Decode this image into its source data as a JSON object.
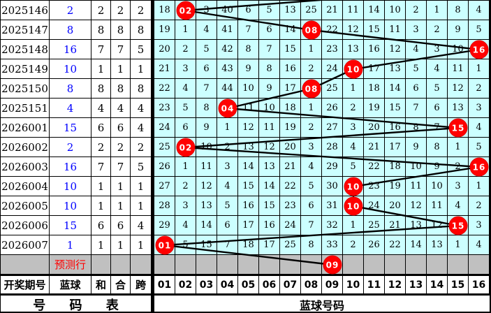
{
  "labels": {
    "left_header": [
      "开奖期号",
      "蓝球",
      "和",
      "合",
      "跨"
    ],
    "left_footer": "号 码 表",
    "prediction_row": "预测行",
    "grid_footer": "蓝球号码"
  },
  "colors": {
    "grid_cell_bg": "#ccffff",
    "prediction_row_bg": "#c0c0c0",
    "hit_circle": "#ff0000",
    "blue_value_text": "#0000ff",
    "prediction_text": "#ff0000",
    "trend_line": "#000000"
  },
  "chart_data": {
    "type": "table",
    "title": "蓝球号码走势表",
    "columns": [
      "01",
      "02",
      "03",
      "04",
      "05",
      "06",
      "07",
      "08",
      "09",
      "10",
      "11",
      "12",
      "13",
      "14",
      "15",
      "16"
    ],
    "periods": [
      "2025146",
      "2025147",
      "2025148",
      "2025149",
      "2025150",
      "2025151",
      "2026001",
      "2026002",
      "2026003",
      "2026004",
      "2026005",
      "2026006",
      "2026007"
    ],
    "blue_ball": [
      2,
      8,
      16,
      10,
      8,
      4,
      15,
      2,
      16,
      10,
      10,
      15,
      1
    ],
    "ball_labels": [
      "02",
      "08",
      "16",
      "10",
      "08",
      "04",
      "15",
      "02",
      "16",
      "10",
      "10",
      "15",
      "01"
    ],
    "sum_column": [
      "2",
      "8",
      "7",
      "1",
      "8",
      "4",
      "6",
      "2",
      "7",
      "1",
      "1",
      "6",
      "1"
    ],
    "combo_column": [
      "2",
      "8",
      "7",
      "1",
      "8",
      "4",
      "6",
      "2",
      "7",
      "1",
      "1",
      "6",
      "1"
    ],
    "span_column": [
      "2",
      "8",
      "5",
      "1",
      "8",
      "4",
      "4",
      "2",
      "5",
      "1",
      "1",
      "4",
      "1"
    ],
    "miss_matrix": [
      [
        "18",
        "",
        "3",
        "40",
        "6",
        "5",
        "13",
        "25",
        "21",
        "11",
        "14",
        "10",
        "2",
        "1",
        "8",
        "4"
      ],
      [
        "19",
        "1",
        "4",
        "41",
        "7",
        "6",
        "14",
        "",
        "22",
        "12",
        "15",
        "11",
        "3",
        "2",
        "9",
        "5"
      ],
      [
        "20",
        "2",
        "5",
        "42",
        "8",
        "7",
        "15",
        "1",
        "23",
        "13",
        "16",
        "12",
        "4",
        "3",
        "10",
        ""
      ],
      [
        "21",
        "3",
        "6",
        "43",
        "9",
        "8",
        "16",
        "2",
        "24",
        "",
        "17",
        "13",
        "5",
        "4",
        "11",
        "1"
      ],
      [
        "22",
        "4",
        "7",
        "44",
        "10",
        "9",
        "17",
        "",
        "25",
        "1",
        "18",
        "14",
        "6",
        "5",
        "12",
        "2"
      ],
      [
        "23",
        "5",
        "8",
        "",
        "11",
        "10",
        "18",
        "1",
        "26",
        "2",
        "19",
        "15",
        "7",
        "6",
        "13",
        "3"
      ],
      [
        "24",
        "6",
        "9",
        "1",
        "12",
        "11",
        "19",
        "2",
        "27",
        "3",
        "20",
        "16",
        "8",
        "7",
        "",
        "4"
      ],
      [
        "25",
        "",
        "10",
        "2",
        "13",
        "12",
        "20",
        "3",
        "28",
        "4",
        "21",
        "17",
        "9",
        "8",
        "1",
        "5"
      ],
      [
        "26",
        "1",
        "11",
        "3",
        "14",
        "13",
        "21",
        "4",
        "29",
        "5",
        "22",
        "18",
        "10",
        "9",
        "2",
        ""
      ],
      [
        "27",
        "2",
        "12",
        "4",
        "15",
        "14",
        "22",
        "5",
        "30",
        "",
        "23",
        "19",
        "11",
        "10",
        "3",
        "1"
      ],
      [
        "28",
        "3",
        "13",
        "5",
        "16",
        "15",
        "23",
        "6",
        "31",
        "",
        "24",
        "20",
        "12",
        "11",
        "4",
        "2"
      ],
      [
        "29",
        "4",
        "14",
        "6",
        "17",
        "16",
        "24",
        "7",
        "32",
        "1",
        "25",
        "21",
        "13",
        "12",
        "",
        "3"
      ],
      [
        "",
        "5",
        "15",
        "7",
        "18",
        "17",
        "25",
        "8",
        "33",
        "2",
        "26",
        "22",
        "14",
        "13",
        "1",
        "4"
      ]
    ],
    "prediction": {
      "column": 9,
      "label": "09"
    },
    "incoming_line_column": 14
  }
}
